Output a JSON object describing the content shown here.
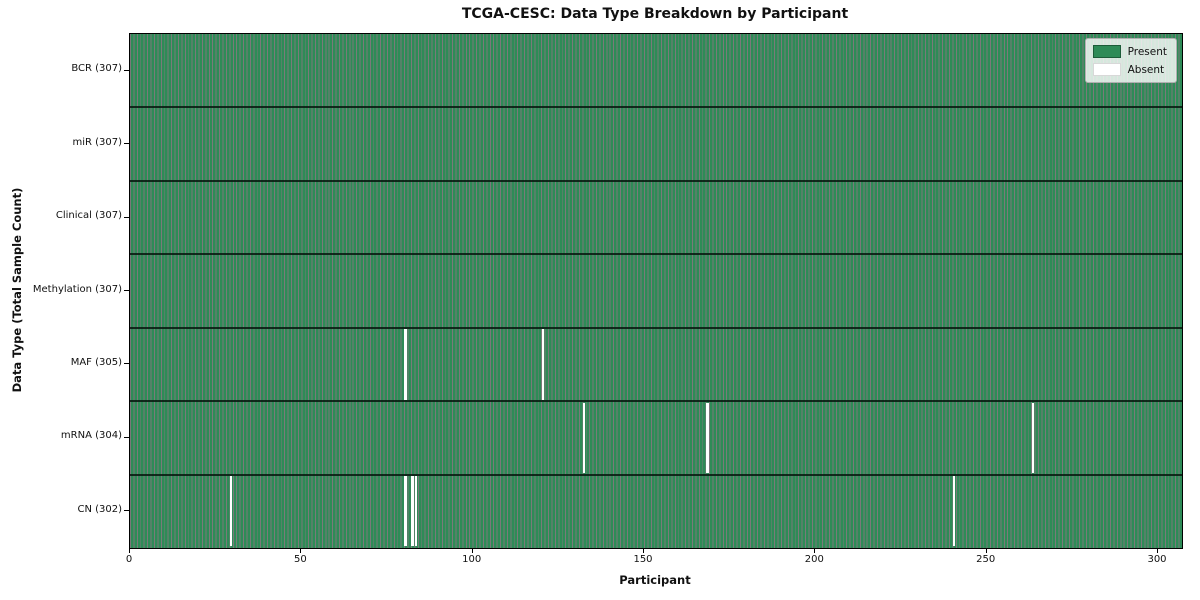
{
  "title": "TCGA-CESC: Data Type Breakdown by Participant",
  "chart_data": {
    "type": "heatmap",
    "title": "TCGA-CESC: Data Type Breakdown by Participant",
    "xlabel": "Participant",
    "ylabel": "Data Type (Total Sample Count)",
    "n_participants": 307,
    "xlim": [
      0,
      307
    ],
    "x_ticks": [
      0,
      50,
      100,
      150,
      200,
      250,
      300
    ],
    "grid": false,
    "legend_position": "upper right",
    "legend": {
      "entries": [
        {
          "label": "Present",
          "color": "#2e8b57"
        },
        {
          "label": "Absent",
          "color": "#ffffff"
        }
      ]
    },
    "rows": [
      {
        "label": "BCR (307)",
        "data_type": "BCR",
        "present_count": 307,
        "absent_participants": []
      },
      {
        "label": "miR (307)",
        "data_type": "miR",
        "present_count": 307,
        "absent_participants": []
      },
      {
        "label": "Clinical (307)",
        "data_type": "Clinical",
        "present_count": 307,
        "absent_participants": []
      },
      {
        "label": "Methylation (307)",
        "data_type": "Methylation",
        "present_count": 307,
        "absent_participants": []
      },
      {
        "label": "MAF (305)",
        "data_type": "MAF",
        "present_count": 305,
        "absent_participants": [
          80,
          120
        ]
      },
      {
        "label": "mRNA (304)",
        "data_type": "mRNA",
        "present_count": 304,
        "absent_participants": [
          132,
          168,
          263
        ]
      },
      {
        "label": "CN (302)",
        "data_type": "CN",
        "present_count": 302,
        "absent_participants": [
          29,
          80,
          82,
          83,
          240
        ]
      }
    ],
    "colors": {
      "present": "#2e8b57",
      "absent": "#ffffff",
      "background": "#ffffff"
    }
  }
}
